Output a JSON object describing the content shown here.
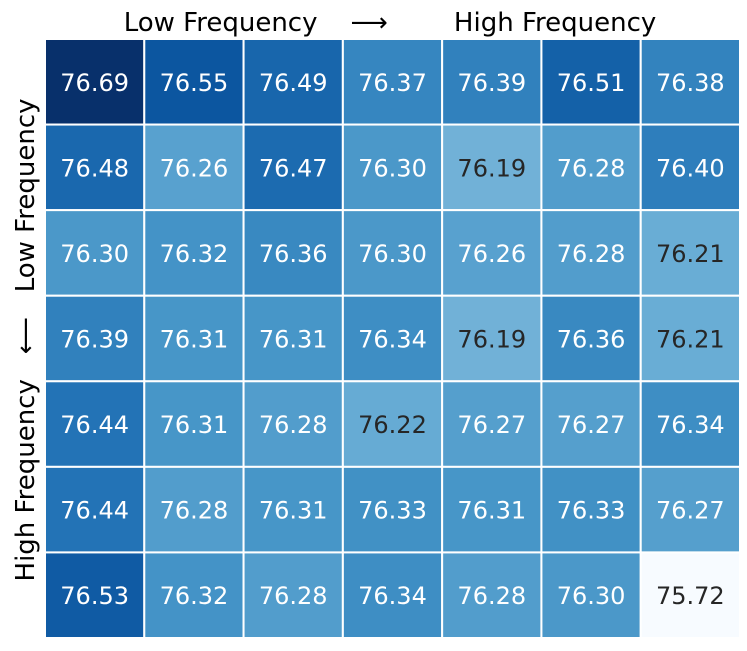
{
  "chart_data": {
    "type": "heatmap",
    "x_title": "Low Frequency    ⟶        High Frequency",
    "y_title": "High Frequency   ⟵   Low Frequency",
    "grid": true,
    "colormap": "Blues",
    "text_color_light": "#ffffff",
    "text_color_dark": "#262626",
    "separator_color": "#ffffff",
    "values": [
      [
        76.69,
        76.55,
        76.49,
        76.37,
        76.39,
        76.51,
        76.38
      ],
      [
        76.48,
        76.26,
        76.47,
        76.3,
        76.19,
        76.28,
        76.4
      ],
      [
        76.3,
        76.32,
        76.36,
        76.3,
        76.26,
        76.28,
        76.21
      ],
      [
        76.39,
        76.31,
        76.31,
        76.34,
        76.19,
        76.36,
        76.21
      ],
      [
        76.44,
        76.31,
        76.28,
        76.22,
        76.27,
        76.27,
        76.34
      ],
      [
        76.44,
        76.28,
        76.31,
        76.33,
        76.31,
        76.33,
        76.27
      ],
      [
        76.53,
        76.32,
        76.28,
        76.34,
        76.28,
        76.3,
        75.72
      ]
    ]
  }
}
